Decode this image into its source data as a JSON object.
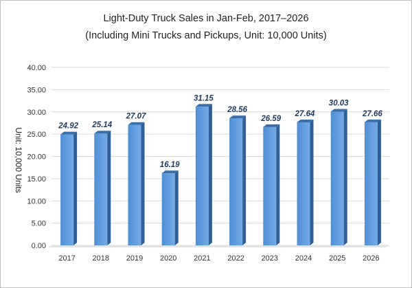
{
  "chart_data": {
    "type": "bar",
    "title": "Light-Duty Truck Sales in Jan-Feb, 2017–2026",
    "subtitle": "(Including Mini Trucks and Pickups, Unit: 10,000 Units)",
    "ylabel": "Unit: 10,000 Units",
    "xlabel": "",
    "categories": [
      "2017",
      "2018",
      "2019",
      "2020",
      "2021",
      "2022",
      "2023",
      "2024",
      "2025",
      "2026"
    ],
    "values": [
      24.92,
      25.14,
      27.07,
      16.19,
      31.15,
      28.56,
      26.59,
      27.64,
      30.03,
      27.66
    ],
    "data_labels": [
      "24.92",
      "25.14",
      "27.07",
      "16.19",
      "31.15",
      "28.56",
      "26.59",
      "27.64",
      "30.03",
      "27.66"
    ],
    "ylim": [
      0,
      40
    ],
    "yticks": [
      "0.00",
      "5.00",
      "10.00",
      "15.00",
      "20.00",
      "25.00",
      "30.00",
      "35.00",
      "40.00"
    ],
    "ytick_values": [
      0,
      5,
      10,
      15,
      20,
      25,
      30,
      35,
      40
    ],
    "grid": true,
    "legend": false,
    "colors": {
      "bar_front": "#4f8fd6",
      "bar_front_light": "#74aae6",
      "bar_side": "#2f5f96",
      "bar_top": "#3b6fa8",
      "label": "#1f3a5f",
      "grid": "#d9d9d9"
    }
  }
}
